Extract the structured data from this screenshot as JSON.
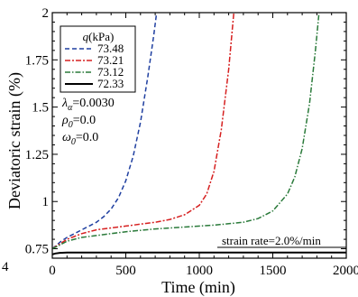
{
  "chart_data": {
    "type": "line",
    "xlabel": "Time (min)",
    "ylabel": "Deviatoric strain (%)",
    "xlim": [
      0,
      2000
    ],
    "ylim": [
      0.7,
      2.0
    ],
    "x_ticks": [
      "0",
      "500",
      "1000",
      "1500",
      "2000"
    ],
    "y_ticks": [
      "0.75",
      "1",
      "1.25",
      "1.5",
      "1.75",
      "2"
    ],
    "clipped_tick_label": "4",
    "legend": {
      "title_symbol": "q",
      "title_unit": "(kPa)",
      "placement": "top-left"
    },
    "parameters": [
      {
        "symbol": "λ",
        "sub": "α",
        "value": "=0.0030"
      },
      {
        "symbol": "ρ",
        "sub": "0",
        "value": "=0.0"
      },
      {
        "symbol": "ω",
        "sub": "0",
        "value": "=0.0"
      }
    ],
    "annotation": "strain rate=2.0%/min",
    "series": [
      {
        "name": "73.48",
        "color": "#1f3fa0",
        "dash": "5,3",
        "points": [
          [
            0,
            0.75
          ],
          [
            30,
            0.77
          ],
          [
            60,
            0.79
          ],
          [
            100,
            0.81
          ],
          [
            150,
            0.83
          ],
          [
            200,
            0.85
          ],
          [
            250,
            0.87
          ],
          [
            300,
            0.89
          ],
          [
            350,
            0.92
          ],
          [
            400,
            0.96
          ],
          [
            450,
            1.02
          ],
          [
            500,
            1.11
          ],
          [
            550,
            1.24
          ],
          [
            600,
            1.42
          ],
          [
            650,
            1.66
          ],
          [
            690,
            1.88
          ],
          [
            710,
            2.0
          ]
        ]
      },
      {
        "name": "73.21",
        "color": "#d62020",
        "dash": "6,2,2,2",
        "points": [
          [
            0,
            0.75
          ],
          [
            40,
            0.77
          ],
          [
            100,
            0.8
          ],
          [
            200,
            0.83
          ],
          [
            300,
            0.85
          ],
          [
            400,
            0.86
          ],
          [
            500,
            0.87
          ],
          [
            600,
            0.88
          ],
          [
            700,
            0.89
          ],
          [
            800,
            0.905
          ],
          [
            900,
            0.93
          ],
          [
            1000,
            0.98
          ],
          [
            1050,
            1.04
          ],
          [
            1100,
            1.16
          ],
          [
            1150,
            1.38
          ],
          [
            1200,
            1.7
          ],
          [
            1235,
            2.0
          ]
        ]
      },
      {
        "name": "73.12",
        "color": "#2a7a3a",
        "dash": "6,2,1.5,2",
        "points": [
          [
            0,
            0.75
          ],
          [
            40,
            0.765
          ],
          [
            100,
            0.79
          ],
          [
            200,
            0.81
          ],
          [
            300,
            0.82
          ],
          [
            500,
            0.84
          ],
          [
            700,
            0.855
          ],
          [
            900,
            0.865
          ],
          [
            1100,
            0.875
          ],
          [
            1300,
            0.89
          ],
          [
            1400,
            0.91
          ],
          [
            1500,
            0.95
          ],
          [
            1600,
            1.04
          ],
          [
            1650,
            1.13
          ],
          [
            1700,
            1.28
          ],
          [
            1750,
            1.52
          ],
          [
            1790,
            1.8
          ],
          [
            1815,
            2.0
          ]
        ]
      },
      {
        "name": "72.33",
        "color": "#000000",
        "dash": "",
        "points": [
          [
            0,
            0.72
          ],
          [
            20,
            0.725
          ],
          [
            50,
            0.728
          ],
          [
            100,
            0.73
          ],
          [
            200,
            0.73
          ],
          [
            500,
            0.73
          ],
          [
            1000,
            0.73
          ],
          [
            1500,
            0.73
          ],
          [
            2000,
            0.73
          ]
        ]
      }
    ]
  }
}
